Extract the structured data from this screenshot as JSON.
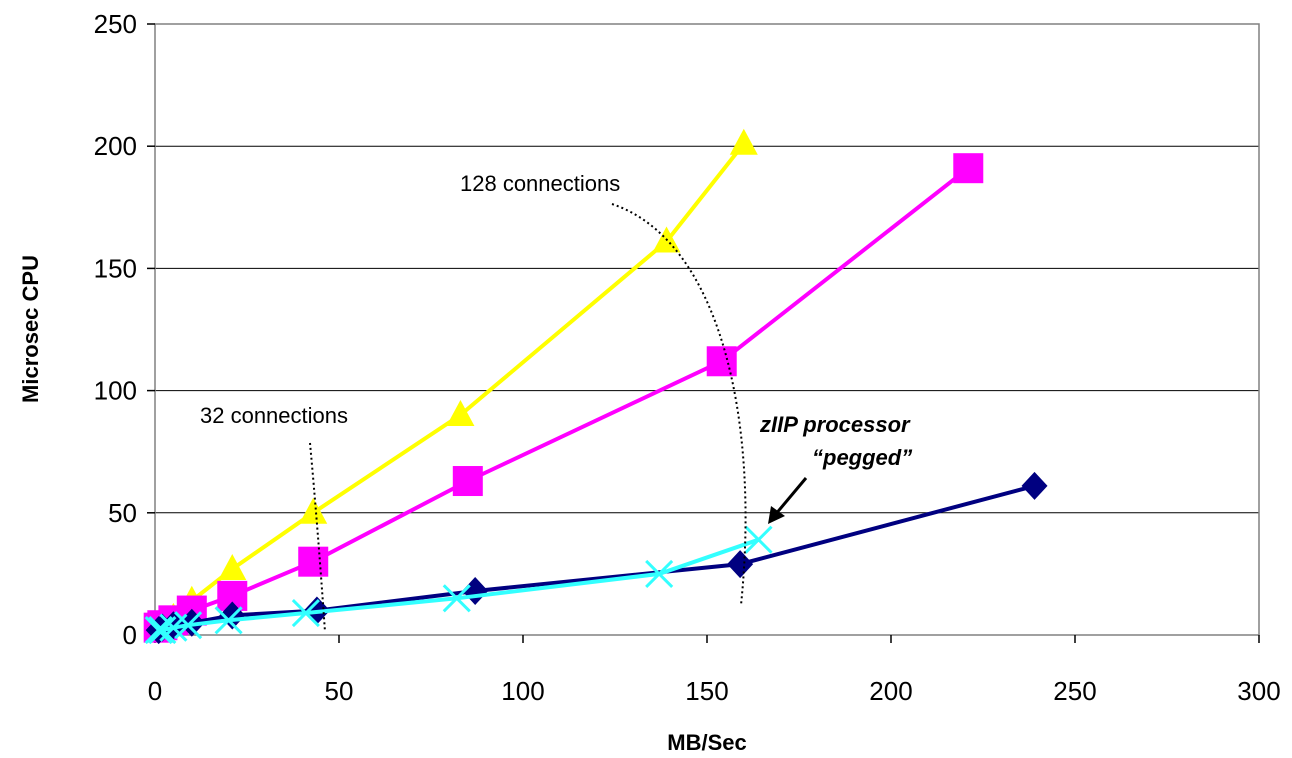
{
  "chart_data": {
    "type": "line",
    "title": "",
    "xlabel": "MB/Sec",
    "ylabel": "Microsec CPU",
    "xlim": [
      0,
      300
    ],
    "ylim": [
      0,
      250
    ],
    "xticks": [
      "0",
      "50",
      "100",
      "150",
      "200",
      "250",
      "300"
    ],
    "yticks": [
      "0",
      "50",
      "100",
      "150",
      "200",
      "250"
    ],
    "grid": "horizontal",
    "legend": "none",
    "series": [
      {
        "color": "#FFFF00",
        "marker": "triangle",
        "x": [
          1,
          3,
          5,
          10,
          21,
          43,
          83,
          139,
          160
        ],
        "y": [
          3,
          4,
          7,
          14,
          27,
          50,
          90,
          161,
          201
        ]
      },
      {
        "color": "#FF00FF",
        "marker": "square",
        "x": [
          1,
          2,
          5,
          10,
          21,
          43,
          85,
          154,
          221
        ],
        "y": [
          3,
          4,
          6,
          10,
          16,
          30,
          63,
          112,
          191
        ]
      },
      {
        "color": "#000080",
        "marker": "diamond",
        "x": [
          1,
          2,
          5,
          10,
          21,
          44,
          87,
          159,
          239
        ],
        "y": [
          2,
          3,
          4,
          5,
          8,
          10,
          18,
          29,
          61
        ]
      },
      {
        "color": "#33FFFF",
        "marker": "x",
        "x": [
          1,
          2,
          5,
          9,
          20,
          41,
          82,
          137,
          164
        ],
        "y": [
          2,
          2,
          3,
          4,
          6,
          9,
          15,
          25,
          39
        ]
      }
    ],
    "annotations": {
      "conn32": "32 connections",
      "conn128": "128 connections",
      "ziip_line1": "zIIP processor",
      "ziip_line2": "“pegged”"
    }
  }
}
